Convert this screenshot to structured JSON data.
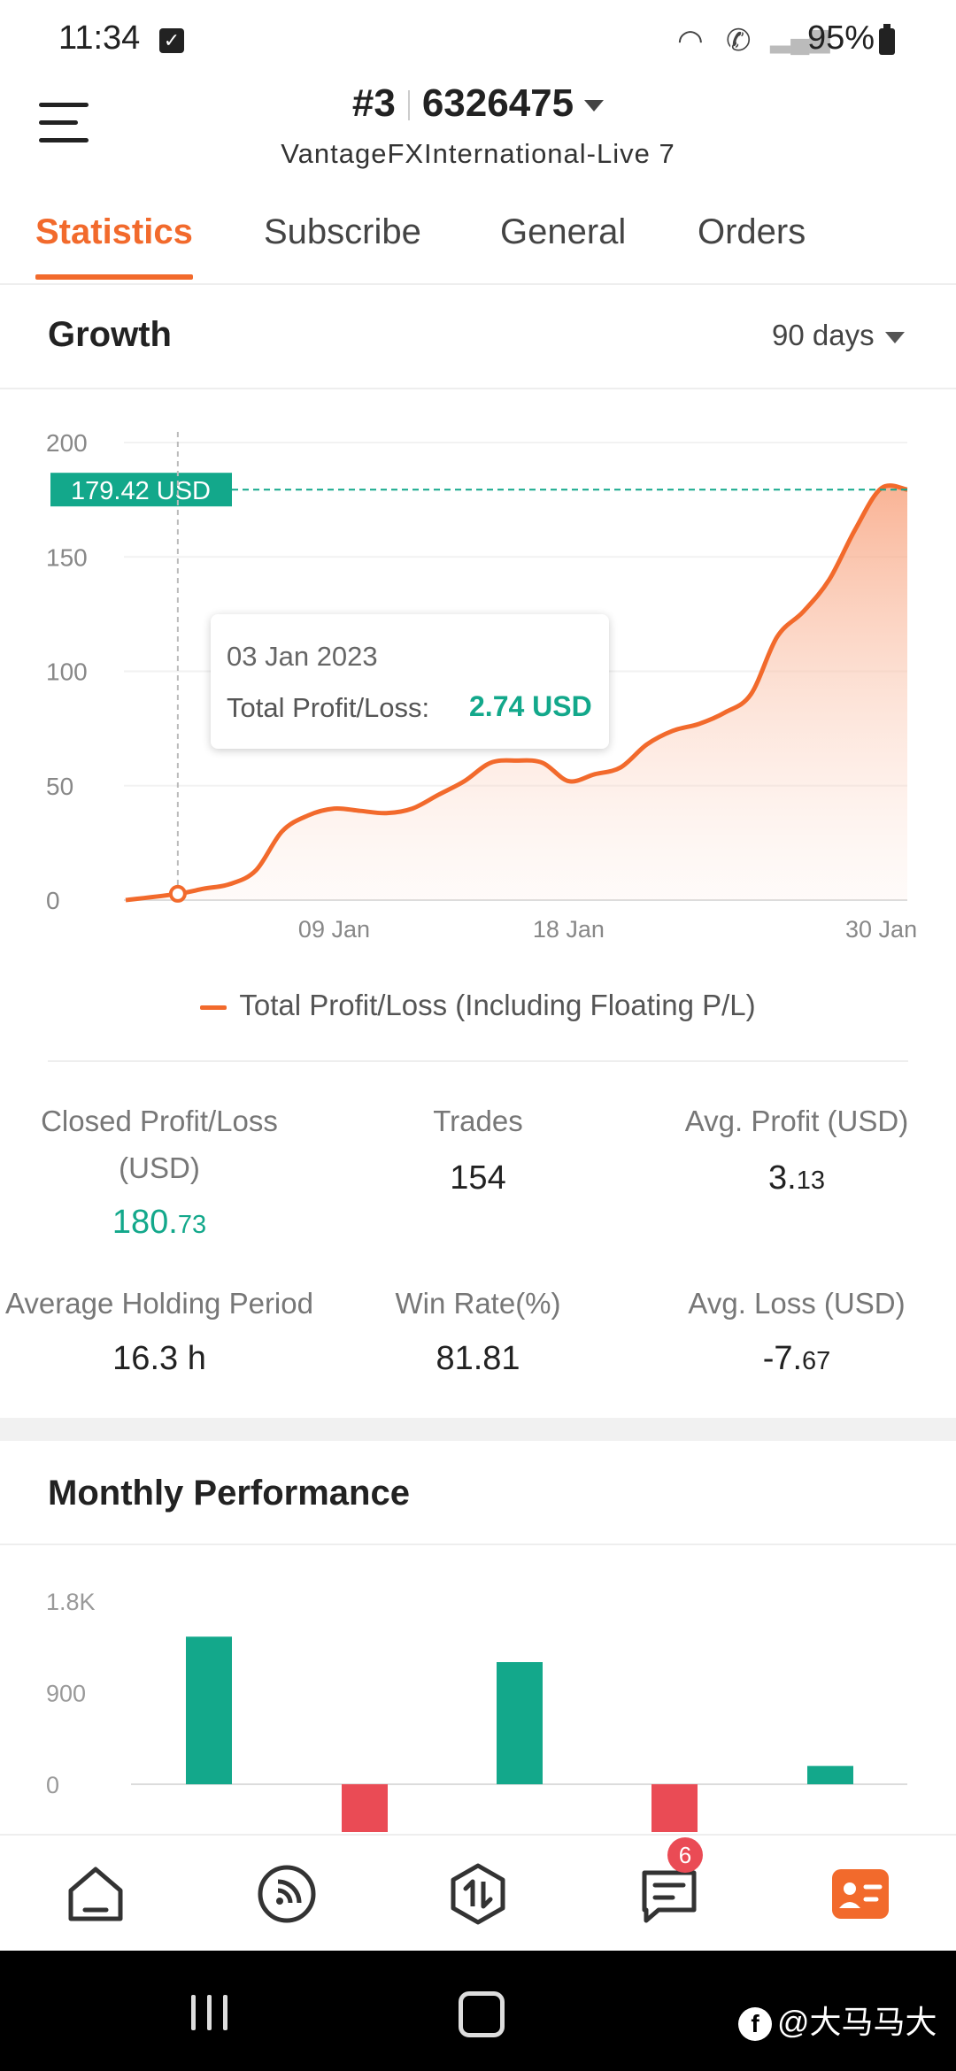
{
  "status_bar": {
    "time": "11:34",
    "battery": "95%",
    "icons": [
      "checkbox-icon",
      "wifi-icon",
      "wifi-call-icon",
      "signal-icon",
      "battery-icon"
    ]
  },
  "header": {
    "account_index": "#3",
    "account_number": "6326475",
    "server": "VantageFXInternational-Live 7"
  },
  "tabs": [
    {
      "label": "Statistics",
      "active": true
    },
    {
      "label": "Subscribe",
      "active": false
    },
    {
      "label": "General",
      "active": false
    },
    {
      "label": "Orders",
      "active": false
    }
  ],
  "growth": {
    "title": "Growth",
    "range": "90 days",
    "current_marker": "179.42 USD",
    "tooltip": {
      "date": "03 Jan 2023",
      "label": "Total Profit/Loss:",
      "value": "2.74 USD"
    },
    "legend": "Total Profit/Loss (Including Floating P/L)"
  },
  "chart_data": [
    {
      "type": "area",
      "x_ticks": [
        "09 Jan",
        "18 Jan",
        "30 Jan"
      ],
      "y_ticks": [
        "0",
        "50",
        "100",
        "150",
        "200"
      ],
      "ylim": [
        0,
        200
      ],
      "xlim_days": [
        1,
        31
      ],
      "series": [
        {
          "name": "Total Profit/Loss (Including Floating P/L)",
          "color": "#f26a2c",
          "x": [
            1,
            3,
            4,
            5,
            6,
            7,
            8,
            9,
            10,
            11,
            12,
            13,
            14,
            15,
            16,
            17,
            18,
            19,
            20,
            21,
            22,
            23,
            24,
            25,
            26,
            27,
            28,
            29,
            30,
            31
          ],
          "y": [
            0,
            2.74,
            5,
            7,
            13,
            30,
            37,
            40,
            39,
            38,
            40,
            46,
            52,
            60,
            61,
            60,
            52,
            55,
            58,
            68,
            74,
            77,
            82,
            90,
            115,
            126,
            140,
            162,
            180,
            179.42
          ]
        }
      ],
      "highlight": {
        "x": 3,
        "y": 2.74
      },
      "reference_line": 179.42
    },
    {
      "type": "bar",
      "y_ticks": [
        "0",
        "900",
        "1.8K"
      ],
      "ylim_visible": [
        0,
        1800
      ],
      "values": [
        1450,
        -470,
        1200,
        -480,
        180
      ],
      "colors": [
        "#13a88b",
        "#ea4b55",
        "#13a88b",
        "#ea4b55",
        "#13a88b"
      ]
    }
  ],
  "stats": {
    "closed_pl_label": "Closed Profit/Loss (USD)",
    "closed_pl_main": "180.",
    "closed_pl_dec": "73",
    "trades_label": "Trades",
    "trades_value": "154",
    "avg_profit_label": "Avg. Profit (USD)",
    "avg_profit_main": "3.",
    "avg_profit_dec": "13",
    "holding_label": "Average Holding Period",
    "holding_value": "16.3 h",
    "winrate_label": "Win Rate(%)",
    "winrate_value": "81.81",
    "avg_loss_label": "Avg. Loss (USD)",
    "avg_loss_main": "-7.",
    "avg_loss_dec": "67"
  },
  "monthly": {
    "title": "Monthly Performance"
  },
  "bottom_nav": {
    "items": [
      "home-icon",
      "signals-icon",
      "trade-icon",
      "messages-icon",
      "account-card-icon"
    ],
    "messages_badge": "6"
  },
  "system_nav": {
    "watermark": "@大马马大"
  }
}
